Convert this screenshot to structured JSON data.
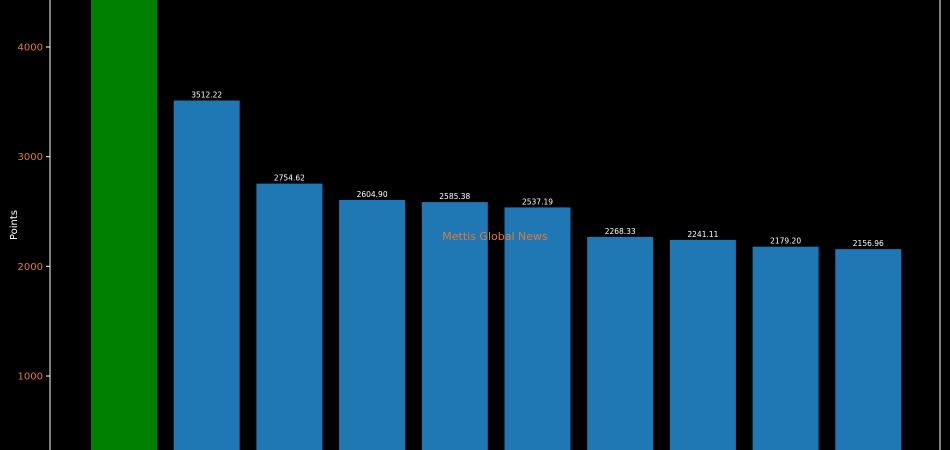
{
  "chart_data": {
    "type": "bar",
    "ylabel": "Points",
    "yticks": [
      1000,
      2000,
      3000,
      4000
    ],
    "ylim": [
      300,
      4420
    ],
    "values": [
      4600,
      3512.22,
      2754.62,
      2604.9,
      2585.38,
      2537.19,
      2268.33,
      2241.11,
      2179.2,
      2156.96
    ],
    "data_labels": [
      "",
      "3512.22",
      "2754.62",
      "2604.90",
      "2585.38",
      "2537.19",
      "2268.33",
      "2241.11",
      "2179.20",
      "2156.96"
    ],
    "bar_colors": [
      "#008000",
      "#1f77b4",
      "#1f77b4",
      "#1f77b4",
      "#1f77b4",
      "#1f77b4",
      "#1f77b4",
      "#1f77b4",
      "#1f77b4",
      "#1f77b4"
    ],
    "watermark": "Mettis Global News",
    "colors": {
      "background": "#000000",
      "axis": "#ffffff",
      "tick_labels": "#e07b39",
      "watermark": "#e07b39",
      "data_labels": "#ffffff"
    }
  }
}
